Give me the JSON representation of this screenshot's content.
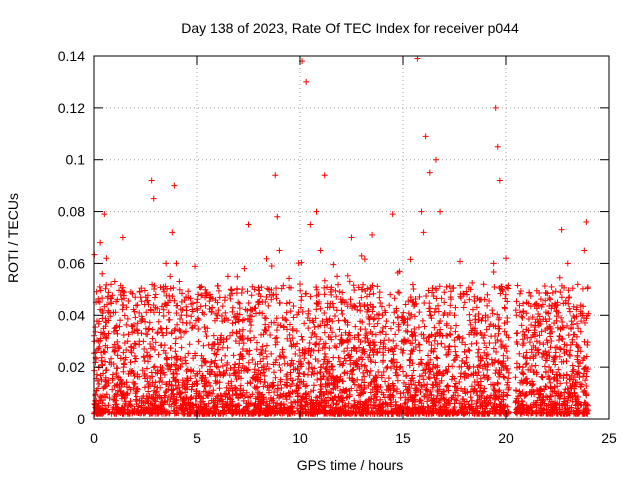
{
  "chart_data": {
    "type": "scatter",
    "title": "Day 138 of 2023, Rate Of TEC Index for receiver p044",
    "xlabel": "GPS time / hours",
    "ylabel": "ROTI / TECUs",
    "xlim": [
      0,
      25
    ],
    "ylim": [
      0,
      0.14
    ],
    "xticks": [
      0,
      5,
      10,
      15,
      20,
      25
    ],
    "yticks": [
      0,
      0.02,
      0.04,
      0.06,
      0.08,
      0.1,
      0.12,
      0.14
    ],
    "xtick_labels": [
      "0",
      "5",
      "10",
      "15",
      "20",
      "25"
    ],
    "ytick_labels": [
      "0",
      "0.02",
      "0.04",
      "0.06",
      "0.08",
      "0.1",
      "0.12",
      "0.14"
    ],
    "grid": true,
    "marker": "+",
    "marker_color": "#ff0000",
    "data_gap_hours": [
      20.15,
      20.45
    ],
    "series": [
      {
        "name": "ROTI",
        "x": [
          0.1,
          0.3,
          0.4,
          0.5,
          0.6,
          0.7,
          1.0,
          1.4,
          2.2,
          2.8,
          2.9,
          3.0,
          3.5,
          3.6,
          3.7,
          3.8,
          3.9,
          4.0,
          4.5,
          5.0,
          5.5,
          6.0,
          6.5,
          7.0,
          7.3,
          7.5,
          7.8,
          8.0,
          8.5,
          8.8,
          8.9,
          9.0,
          9.5,
          10.0,
          10.1,
          10.3,
          10.5,
          10.8,
          11.0,
          11.2,
          11.5,
          11.8,
          12.0,
          12.5,
          13.0,
          13.5,
          14.0,
          14.5,
          15.0,
          15.5,
          15.7,
          15.9,
          16.0,
          16.1,
          16.3,
          16.6,
          16.8,
          17.0,
          17.5,
          18.0,
          18.5,
          19.0,
          19.4,
          19.5,
          19.6,
          19.7,
          20.0,
          20.5,
          21.0,
          21.5,
          22.0,
          22.5,
          22.7,
          23.0,
          23.5,
          23.8,
          23.9
        ],
        "y": [
          0.045,
          0.068,
          0.056,
          0.079,
          0.062,
          0.038,
          0.035,
          0.07,
          0.03,
          0.092,
          0.085,
          0.048,
          0.06,
          0.045,
          0.055,
          0.072,
          0.09,
          0.06,
          0.04,
          0.045,
          0.035,
          0.04,
          0.055,
          0.045,
          0.058,
          0.075,
          0.05,
          0.045,
          0.05,
          0.094,
          0.078,
          0.065,
          0.045,
          0.052,
          0.138,
          0.13,
          0.075,
          0.08,
          0.065,
          0.094,
          0.05,
          0.055,
          0.045,
          0.07,
          0.05,
          0.071,
          0.04,
          0.079,
          0.038,
          0.045,
          0.139,
          0.08,
          0.072,
          0.109,
          0.095,
          0.1,
          0.08,
          0.045,
          0.04,
          0.045,
          0.035,
          0.04,
          0.06,
          0.12,
          0.105,
          0.092,
          0.062,
          0.04,
          0.045,
          0.03,
          0.035,
          0.045,
          0.073,
          0.06,
          0.035,
          0.065,
          0.076
        ]
      }
    ]
  }
}
